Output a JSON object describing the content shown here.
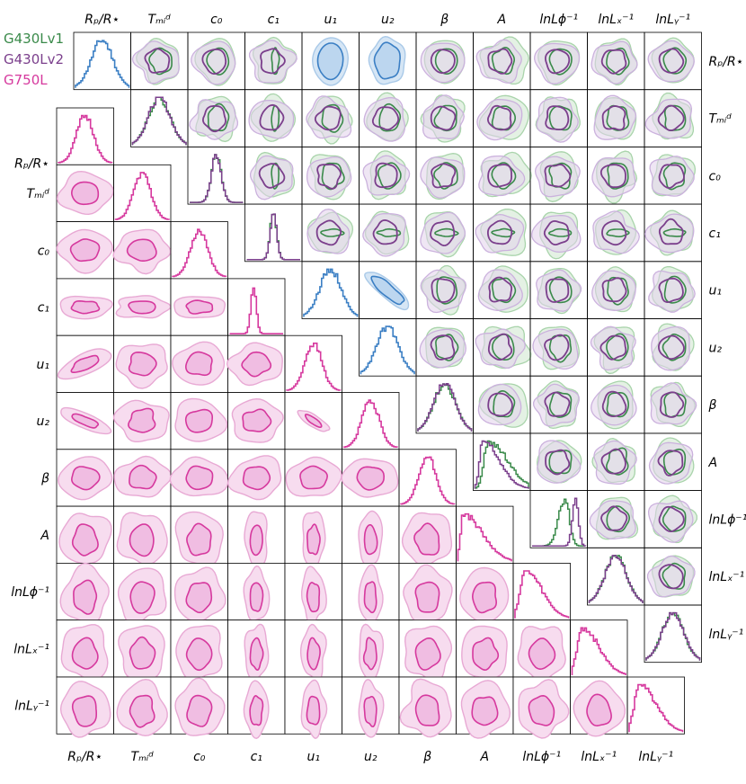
{
  "legend": {
    "items": [
      {
        "label": "G430Lv1",
        "color": "#3a8a4a"
      },
      {
        "label": "G430Lv2",
        "color": "#7b3f8c"
      },
      {
        "label": "G750L",
        "color": "#d6399e"
      }
    ]
  },
  "colors": {
    "g430lv1": "#3a8a4a",
    "g430lv2": "#7b3f8c",
    "g750l": "#d6399e",
    "shared": "#3b7fc4",
    "overlap_gray": "#9a9a9a"
  },
  "chart_data": {
    "type": "corner",
    "parameters": [
      "R_p/R_*",
      "T_mid",
      "c_0",
      "c_1",
      "u_1",
      "u_2",
      "β",
      "A",
      "ln L_φ^-1",
      "ln L_x^-1",
      "ln L_y^-1"
    ],
    "upper_triangle_label_top": [
      "Rₚ/R⋆",
      "Tₘᵢᵈ",
      "c₀",
      "c₁",
      "u₁",
      "u₂",
      "β",
      "A",
      "lnLϕ⁻¹",
      "lnLₓ⁻¹",
      "lnLᵧ⁻¹"
    ],
    "lower_triangle_label_bottom": [
      "Rₚ/R⋆",
      "Tₘᵢᵈ",
      "c₀",
      "c₁",
      "u₁",
      "u₂",
      "β",
      "A",
      "lnLϕ⁻¹",
      "lnLₓ⁻¹",
      "lnLᵧ⁻¹"
    ],
    "panels": "upper triangle: G430Lv1 and G430Lv2 posteriors (shared parameters in blue); lower triangle: G750L posteriors; diagonal: 1D marginal histograms",
    "grid": false
  }
}
